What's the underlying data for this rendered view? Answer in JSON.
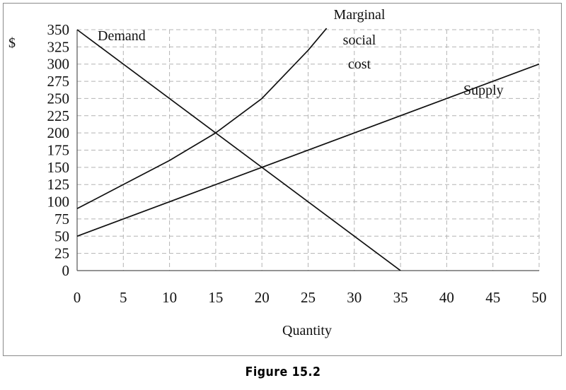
{
  "chart_data": {
    "type": "line",
    "ylabel": "$",
    "xlabel": "Quantity",
    "xlim": [
      0,
      50
    ],
    "ylim": [
      0,
      350
    ],
    "x_ticks": [
      0,
      5,
      10,
      15,
      20,
      25,
      30,
      35,
      40,
      45,
      50
    ],
    "y_ticks": [
      0,
      25,
      50,
      75,
      100,
      125,
      150,
      175,
      200,
      225,
      250,
      275,
      300,
      325,
      350
    ],
    "grid": true,
    "grid_style": "dashed",
    "series": [
      {
        "name": "Demand",
        "points": [
          [
            0,
            350
          ],
          [
            35,
            0
          ]
        ]
      },
      {
        "name": "Supply",
        "points": [
          [
            0,
            50
          ],
          [
            50,
            300
          ]
        ]
      },
      {
        "name": "Marginal social cost",
        "points": [
          [
            0,
            90
          ],
          [
            10,
            160
          ],
          [
            15,
            200
          ],
          [
            20,
            250
          ],
          [
            25,
            320
          ],
          [
            27,
            352
          ]
        ]
      }
    ],
    "labels": {
      "demand": "Demand",
      "supply": "Supply",
      "msc_lines": [
        "Marginal",
        "social",
        "cost"
      ]
    },
    "colors": {
      "line": "#111111",
      "grid": "#b4b4b4",
      "frame": "#8a8a8a"
    }
  },
  "caption": "Figure 15.2"
}
